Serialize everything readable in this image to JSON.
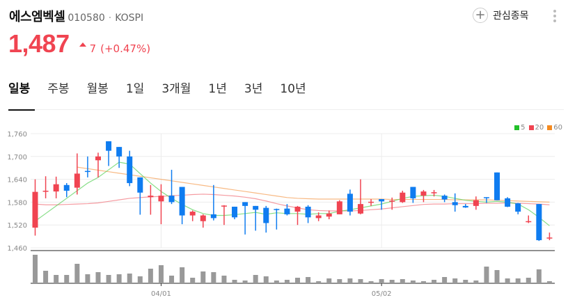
{
  "stock": {
    "name": "에스엠벡셀",
    "code": "010580",
    "separator": "·",
    "market": "KOSPI",
    "price": "1,487",
    "change": "7",
    "change_pct": "(+0.47%)",
    "direction": "up",
    "up_color": "#f04451",
    "down_color": "#0f7cf0"
  },
  "actions": {
    "watchlist_label": "관심종목",
    "plus_glyph": "+"
  },
  "tabs": [
    {
      "label": "일봉",
      "active": true
    },
    {
      "label": "주봉"
    },
    {
      "label": "월봉"
    },
    {
      "label": "1일"
    },
    {
      "label": "3개월"
    },
    {
      "label": "1년"
    },
    {
      "label": "3년"
    },
    {
      "label": "10년"
    }
  ],
  "legend": [
    {
      "label": "5",
      "color": "#22c02a"
    },
    {
      "label": "20",
      "color": "#f04451"
    },
    {
      "label": "60",
      "color": "#f58a1f"
    }
  ],
  "chart_data": {
    "type": "candlestick",
    "title": "에스엠벡셀 일봉",
    "y_ticks": [
      1760,
      1700,
      1640,
      1580,
      1520,
      1460
    ],
    "y_tick_labels": [
      "1,760",
      "1,700",
      "1,640",
      "1,580",
      "1,520",
      "1,460"
    ],
    "ylim": [
      1460,
      1760
    ],
    "x_ticks": [
      {
        "index": 12,
        "label": "04/01"
      },
      {
        "index": 33,
        "label": "05/02"
      }
    ],
    "grid": true,
    "legend_position": "top-right",
    "candles": [
      [
        1513,
        1640,
        1492,
        1607
      ],
      [
        1608,
        1648,
        1590,
        1610
      ],
      [
        1608,
        1647,
        1590,
        1627
      ],
      [
        1625,
        1630,
        1593,
        1610
      ],
      [
        1618,
        1708,
        1600,
        1655
      ],
      [
        1662,
        1700,
        1645,
        1661
      ],
      [
        1690,
        1710,
        1645,
        1700
      ],
      [
        1740,
        1740,
        1675,
        1715
      ],
      [
        1725,
        1725,
        1670,
        1700
      ],
      [
        1700,
        1715,
        1622,
        1630
      ],
      [
        1645,
        1645,
        1547,
        1605
      ],
      [
        1593,
        1625,
        1547,
        1597
      ],
      [
        1582,
        1627,
        1522,
        1597
      ],
      [
        1597,
        1665,
        1575,
        1580
      ],
      [
        1620,
        1620,
        1522,
        1545
      ],
      [
        1545,
        1558,
        1530,
        1555
      ],
      [
        1530,
        1548,
        1513,
        1545
      ],
      [
        1548,
        1625,
        1532,
        1538
      ],
      [
        1570,
        1572,
        1520,
        1571
      ],
      [
        1568,
        1568,
        1535,
        1540
      ],
      [
        1580,
        1580,
        1495,
        1570
      ],
      [
        1570,
        1570,
        1505,
        1560
      ],
      [
        1565,
        1570,
        1500,
        1525
      ],
      [
        1562,
        1563,
        1508,
        1561
      ],
      [
        1563,
        1575,
        1545,
        1548
      ],
      [
        1555,
        1570,
        1520,
        1568
      ],
      [
        1568,
        1572,
        1525,
        1540
      ],
      [
        1538,
        1553,
        1530,
        1545
      ],
      [
        1542,
        1558,
        1535,
        1550
      ],
      [
        1548,
        1585,
        1548,
        1582
      ],
      [
        1602,
        1613,
        1545,
        1555
      ],
      [
        1550,
        1640,
        1548,
        1575
      ],
      [
        1579,
        1588,
        1570,
        1581
      ],
      [
        1588,
        1588,
        1560,
        1582
      ],
      [
        1582,
        1592,
        1560,
        1584
      ],
      [
        1580,
        1610,
        1578,
        1605
      ],
      [
        1620,
        1620,
        1578,
        1590
      ],
      [
        1597,
        1612,
        1580,
        1608
      ],
      [
        1604,
        1612,
        1595,
        1606
      ],
      [
        1597,
        1600,
        1580,
        1587
      ],
      [
        1580,
        1603,
        1555,
        1572
      ],
      [
        1570,
        1575,
        1565,
        1566
      ],
      [
        1570,
        1595,
        1560,
        1585
      ],
      [
        1593,
        1593,
        1578,
        1592
      ],
      [
        1658,
        1658,
        1585,
        1585
      ],
      [
        1590,
        1593,
        1567,
        1568
      ],
      [
        1577,
        1578,
        1548,
        1555
      ],
      [
        1529,
        1545,
        1525,
        1530
      ],
      [
        1575,
        1575,
        1478,
        1480
      ],
      [
        1486,
        1500,
        1480,
        1487
      ]
    ],
    "ma5": [
      1530,
      1550,
      1570,
      1590,
      1610,
      1630,
      1645,
      1665,
      1685,
      1680,
      1655,
      1630,
      1608,
      1590,
      1574,
      1560,
      1550,
      1545,
      1545,
      1547,
      1550,
      1553,
      1548,
      1552,
      1550,
      1550,
      1548,
      1550,
      1550,
      1556,
      1560,
      1565,
      1570,
      1575,
      1582,
      1590,
      1595,
      1597,
      1598,
      1595,
      1590,
      1585,
      1582,
      1580,
      1582,
      1580,
      1575,
      1560,
      1540,
      1518
    ],
    "ma20": [
      1575,
      1573,
      1573,
      1574,
      1575,
      1576,
      1578,
      1582,
      1586,
      1590,
      1592,
      1594,
      1595,
      1597,
      1598,
      1600,
      1601,
      1600,
      1598,
      1596,
      1593,
      1589,
      1583,
      1576,
      1570,
      1565,
      1560,
      1558,
      1557,
      1557,
      1557,
      1558,
      1560,
      1562,
      1565,
      1568,
      1571,
      1574,
      1575,
      1575,
      1576,
      1576,
      1576,
      1577,
      1577,
      1578,
      1577,
      1576,
      1575,
      1573
    ],
    "ma60": [
      null,
      null,
      null,
      null,
      1672,
      1668,
      1664,
      1660,
      1656,
      1652,
      1648,
      1644,
      1640,
      1636,
      1632,
      1628,
      1624,
      1620,
      1616,
      1612,
      1608,
      1604,
      1600,
      1596,
      1592,
      1590,
      1589,
      1588,
      1588,
      1588,
      1588,
      1588,
      1588,
      1588,
      1587,
      1587,
      1587,
      1587,
      1587,
      1587,
      1586,
      1586,
      1586,
      1586,
      1585,
      1584,
      1583,
      1582,
      1581,
      1580
    ],
    "volume": [
      41,
      18,
      12,
      12,
      28,
      13,
      16,
      12,
      13,
      14,
      10,
      21,
      26,
      11,
      23,
      8,
      17,
      16,
      11,
      5,
      4,
      12,
      10,
      4,
      5,
      8,
      9,
      3,
      7,
      6,
      7,
      6,
      3,
      6,
      5,
      6,
      4,
      3,
      5,
      9,
      7,
      5,
      4,
      24,
      19,
      7,
      7,
      8,
      20,
      3
    ]
  }
}
